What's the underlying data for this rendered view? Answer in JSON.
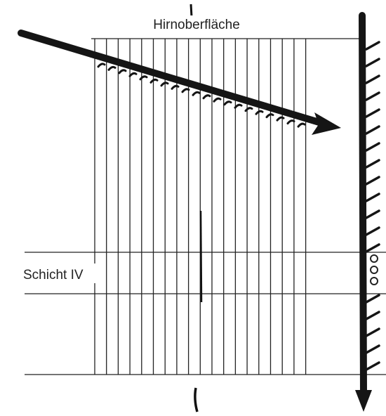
{
  "labels": {
    "surface": "Hirnoberfläche",
    "layer": "Schicht IV"
  }
}
